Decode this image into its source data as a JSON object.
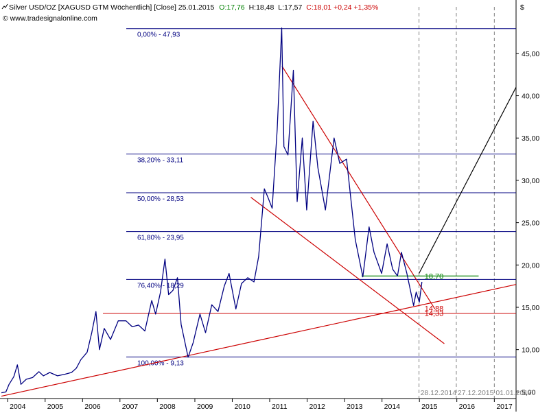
{
  "header": {
    "icon": "chart-line-icon",
    "instrument": "Silver USD/OZ [XAGUSD GTM  Wöchentlich] [Close] 25.01.2015",
    "open": "O:17,76",
    "high": "H:18,48",
    "low": "L:17,57",
    "close_change": "C:18,01 +0,24 +1,35%",
    "source": "© www.tradesignalonline.com",
    "currency": "$",
    "colors": {
      "text": "#000000",
      "open": "#008000",
      "close": "#cc0000"
    }
  },
  "chart_data": {
    "type": "line",
    "series": [
      {
        "values": [
          [
            "2003-11-01",
            4.9
          ],
          [
            "2003-12-15",
            5.0
          ],
          [
            "2004-01-15",
            5.9
          ],
          [
            "2004-03-01",
            6.8
          ],
          [
            "2004-04-05",
            8.2
          ],
          [
            "2004-05-10",
            5.9
          ],
          [
            "2004-07-01",
            6.5
          ],
          [
            "2004-09-01",
            6.7
          ],
          [
            "2004-11-01",
            7.4
          ],
          [
            "2004-12-15",
            6.9
          ],
          [
            "2005-02-15",
            7.3
          ],
          [
            "2005-05-01",
            6.9
          ],
          [
            "2005-07-15",
            7.1
          ],
          [
            "2005-09-15",
            7.3
          ],
          [
            "2005-11-01",
            7.8
          ],
          [
            "2005-12-15",
            8.8
          ],
          [
            "2006-02-15",
            9.7
          ],
          [
            "2006-04-01",
            12.0
          ],
          [
            "2006-05-12",
            14.5
          ],
          [
            "2006-06-15",
            10.0
          ],
          [
            "2006-08-01",
            12.5
          ],
          [
            "2006-10-01",
            11.2
          ],
          [
            "2006-12-15",
            13.4
          ],
          [
            "2007-03-01",
            13.4
          ],
          [
            "2007-05-01",
            12.7
          ],
          [
            "2007-07-01",
            12.9
          ],
          [
            "2007-09-01",
            12.2
          ],
          [
            "2007-11-07",
            15.8
          ],
          [
            "2007-12-15",
            14.2
          ],
          [
            "2008-02-01",
            16.8
          ],
          [
            "2008-03-15",
            20.7
          ],
          [
            "2008-04-20",
            16.5
          ],
          [
            "2008-06-01",
            17.0
          ],
          [
            "2008-07-15",
            18.5
          ],
          [
            "2008-08-20",
            13.0
          ],
          [
            "2008-10-27",
            9.1
          ],
          [
            "2008-12-15",
            10.8
          ],
          [
            "2009-02-20",
            14.2
          ],
          [
            "2009-04-15",
            12.0
          ],
          [
            "2009-06-15",
            15.3
          ],
          [
            "2009-08-15",
            14.5
          ],
          [
            "2009-10-15",
            17.5
          ],
          [
            "2009-12-01",
            19.0
          ],
          [
            "2010-02-05",
            14.8
          ],
          [
            "2010-04-01",
            17.8
          ],
          [
            "2010-06-01",
            18.5
          ],
          [
            "2010-08-01",
            18.0
          ],
          [
            "2010-09-15",
            21.0
          ],
          [
            "2010-11-10",
            29.0
          ],
          [
            "2010-12-15",
            28.0
          ],
          [
            "2011-01-25",
            26.7
          ],
          [
            "2011-03-15",
            36.0
          ],
          [
            "2011-04-28",
            48.0
          ],
          [
            "2011-05-20",
            34.0
          ],
          [
            "2011-06-28",
            33.0
          ],
          [
            "2011-08-20",
            43.0
          ],
          [
            "2011-09-26",
            27.5
          ],
          [
            "2011-11-15",
            35.0
          ],
          [
            "2011-12-28",
            26.5
          ],
          [
            "2012-02-28",
            37.0
          ],
          [
            "2012-04-15",
            31.5
          ],
          [
            "2012-06-28",
            26.5
          ],
          [
            "2012-09-20",
            35.0
          ],
          [
            "2012-11-15",
            32.0
          ],
          [
            "2013-01-20",
            32.5
          ],
          [
            "2013-04-15",
            23.0
          ],
          [
            "2013-06-28",
            18.6
          ],
          [
            "2013-08-28",
            24.5
          ],
          [
            "2013-10-15",
            21.5
          ],
          [
            "2013-12-28",
            19.0
          ],
          [
            "2014-02-20",
            22.5
          ],
          [
            "2014-04-15",
            19.5
          ],
          [
            "2014-06-01",
            18.7
          ],
          [
            "2014-07-10",
            21.5
          ],
          [
            "2014-09-01",
            19.0
          ],
          [
            "2014-11-05",
            15.2
          ],
          [
            "2014-12-01",
            16.8
          ],
          [
            "2014-12-31",
            15.6
          ],
          [
            "2015-01-25",
            18.0
          ]
        ]
      }
    ],
    "y_axis": {
      "ticks": [
        "5,00",
        "10,00",
        "15,00",
        "20,00",
        "25,00",
        "30,00",
        "35,00",
        "40,00",
        "45,00"
      ],
      "tick_values": [
        5,
        10,
        15,
        20,
        25,
        30,
        35,
        40,
        45
      ],
      "range": [
        4.3,
        50.5
      ]
    },
    "x_axis": {
      "ticks": [
        "2004",
        "2005",
        "2006",
        "2007",
        "2008",
        "2009",
        "2010",
        "2011",
        "2012",
        "2013",
        "2014",
        "2015",
        "2016",
        "2017"
      ],
      "tick_dates": [
        "2004-01-01",
        "2005-01-01",
        "2006-01-01",
        "2007-01-01",
        "2008-01-01",
        "2009-01-01",
        "2010-01-01",
        "2011-01-01",
        "2012-01-01",
        "2013-01-01",
        "2014-01-01",
        "2015-01-01",
        "2016-01-01",
        "2017-01-01"
      ],
      "range": [
        "2003-11-01",
        "2017-08-01"
      ]
    },
    "fibonacci_levels": [
      {
        "label": "0,00% - 47,93",
        "value": 47.93
      },
      {
        "label": "38,20% - 33,11",
        "value": 33.11
      },
      {
        "label": "50,00% - 28,53",
        "value": 28.53
      },
      {
        "label": "61,80% - 23,95",
        "value": 23.95
      },
      {
        "label": "76,40% - 18,29",
        "value": 18.29
      },
      {
        "label": "100,00% - 9,13",
        "value": 9.13
      }
    ],
    "horizontal_line": {
      "value": 14.3
    },
    "price_labels": [
      {
        "text": "18,70",
        "date": "2015-01-25",
        "value": 18.7,
        "color": "#008000"
      },
      {
        "text": "14,88",
        "date": "2015-01-25",
        "value": 14.88,
        "color": "#cc0000"
      },
      {
        "text": "14,33",
        "date": "2015-01-25",
        "value": 14.33,
        "color": "#cc0000"
      }
    ],
    "trendlines": [
      {
        "color": "#cc0000",
        "points": [
          [
            "2003-11-01",
            4.5
          ],
          [
            "2017-08-01",
            17.7
          ]
        ]
      },
      {
        "color": "#cc0000",
        "points": [
          [
            "2011-05-01",
            43.5
          ],
          [
            "2015-06-01",
            14.8
          ]
        ]
      },
      {
        "color": "#cc0000",
        "points": [
          [
            "2010-07-01",
            28.0
          ],
          [
            "2015-09-01",
            10.7
          ]
        ]
      },
      {
        "color": "#008000",
        "points": [
          [
            "2013-06-15",
            18.7
          ],
          [
            "2016-08-01",
            18.7
          ]
        ]
      },
      {
        "color": "#000000",
        "points": [
          [
            "2014-12-28",
            19.0
          ],
          [
            "2017-08-01",
            41.0
          ]
        ]
      }
    ],
    "vertical_markers": [
      {
        "date": "2014-12-28",
        "label": "28.12.2014"
      },
      {
        "date": "2015-12-27",
        "label": "27.12.2015"
      },
      {
        "date": "2017-01-01",
        "label": "01.01.2017"
      }
    ],
    "colors": {
      "price": "#000080",
      "fib": "#000080",
      "axis": "#000000",
      "grid": "#808080"
    }
  }
}
